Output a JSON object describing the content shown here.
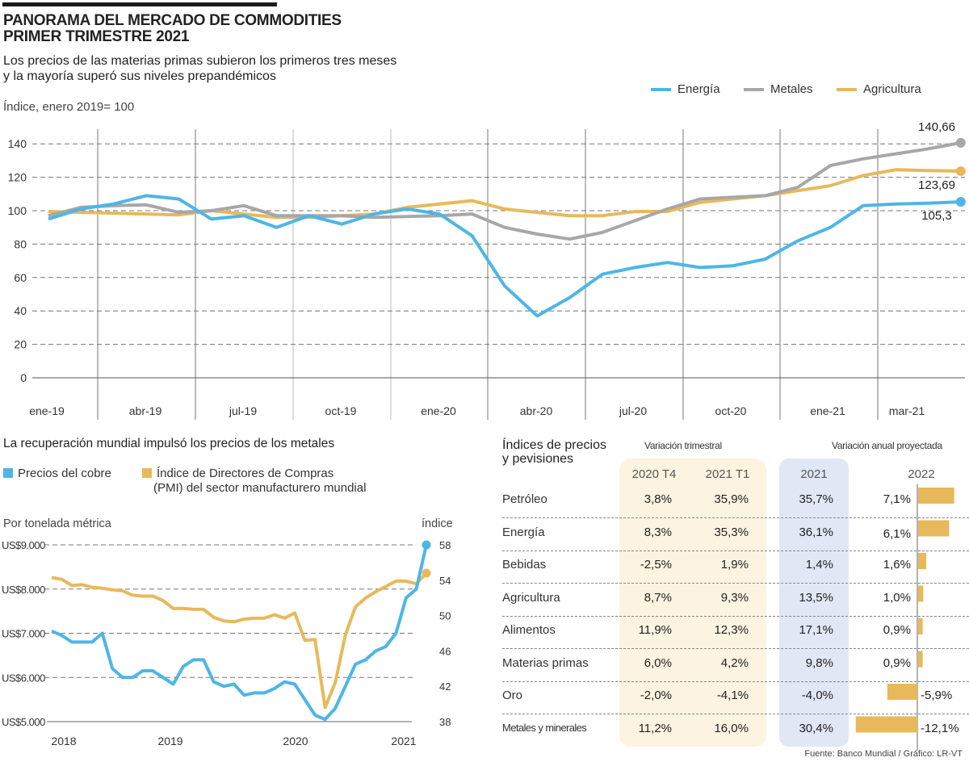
{
  "header": {
    "title_line1": "PANORAMA DEL MERCADO DE COMMODITIES",
    "title_line2": "PRIMER TRIMESTRE 2021",
    "subtitle_line1": "Los precios de las materias primas subieron los primeros tres meses",
    "subtitle_line2": "y la mayoría superó sus niveles prepandémicos",
    "unit_label": "Índice, enero 2019= 100"
  },
  "colors": {
    "energia": "#4db6e6",
    "metales": "#a7a7aa",
    "agricultura": "#e8b95a",
    "band_quarterly": "#fdf3e1",
    "band_annual": "#e1e7f4"
  },
  "chart_data": [
    {
      "type": "line",
      "title": "Índice, enero 2019= 100",
      "ylabel": "Índice, enero 2019= 100",
      "ylim": [
        0,
        140
      ],
      "yticks": [
        "0",
        "20",
        "40",
        "60",
        "80",
        "100",
        "120",
        "140"
      ],
      "ytick_values": [
        0,
        20,
        40,
        60,
        80,
        100,
        120,
        140
      ],
      "xtick_labels": [
        "ene-19",
        "abr-19",
        "jul-19",
        "oct-19",
        "ene-20",
        "abr-20",
        "jul-20",
        "oct-20",
        "ene-21",
        "mar-21"
      ],
      "x": [
        "ene-19",
        "feb-19",
        "mar-19",
        "abr-19",
        "may-19",
        "jun-19",
        "jul-19",
        "ago-19",
        "sep-19",
        "oct-19",
        "nov-19",
        "dic-19",
        "ene-20",
        "feb-20",
        "mar-20",
        "abr-20",
        "may-20",
        "jun-20",
        "jul-20",
        "ago-20",
        "sep-20",
        "oct-20",
        "nov-20",
        "dic-20",
        "ene-21",
        "feb-21",
        "mar-21",
        "abr-21",
        "may-21"
      ],
      "legend_position": "top-right",
      "grid": true,
      "series": [
        {
          "name": "Energía",
          "color_key": "energia",
          "values": [
            95,
            101,
            104,
            109,
            107,
            95,
            97,
            90,
            97,
            92,
            98,
            101,
            98,
            85,
            55,
            37,
            48,
            62,
            66,
            69,
            66,
            67,
            71,
            82,
            90,
            103,
            104,
            104.5,
            105.3
          ]
        },
        {
          "name": "Metales",
          "color_key": "metales",
          "values": [
            97,
            102,
            103,
            103.5,
            99,
            100,
            103,
            97,
            97,
            97,
            96,
            96.5,
            97,
            98,
            90,
            86,
            83,
            87,
            94,
            101,
            107,
            108,
            109,
            114,
            127,
            131,
            134,
            137,
            140.66
          ]
        },
        {
          "name": "Agricultura",
          "color_key": "agricultura",
          "values": [
            99.5,
            99,
            98.5,
            98,
            97.5,
            100,
            98,
            96,
            96,
            97,
            98,
            102,
            104,
            106,
            101,
            99,
            97,
            97,
            99.5,
            99.5,
            105,
            107,
            109,
            112,
            115,
            121,
            124.5,
            124,
            123.69
          ]
        }
      ],
      "annotations": [
        {
          "series": "Metales",
          "label": "140,66"
        },
        {
          "series": "Agricultura",
          "label": "123,69"
        },
        {
          "series": "Energía",
          "label": "105,3"
        }
      ]
    },
    {
      "type": "line",
      "title": "La recuperación mundial impulsó los precios de los metales",
      "ylabel": "Por tonelada métrica",
      "ylabel_right": "índice",
      "ylim": [
        5000,
        9000
      ],
      "ylim_right": [
        38,
        58
      ],
      "yticks": [
        "US$5.000",
        "US$6.000",
        "US$7.000",
        "US$8.000",
        "US$9.000"
      ],
      "ytick_values": [
        5000,
        6000,
        7000,
        8000,
        9000
      ],
      "yticks_right": [
        "38",
        "42",
        "46",
        "50",
        "54",
        "58"
      ],
      "ytick_values_right": [
        38,
        42,
        46,
        50,
        54,
        58
      ],
      "xtick_labels": [
        "2018",
        "2019",
        "2020",
        "2021"
      ],
      "x_range": [
        "ene-2018",
        "mar-2021"
      ],
      "legend_position": "top-left",
      "grid": true,
      "series": [
        {
          "name": "Precios del cobre",
          "axis": "left",
          "color_key": "energia",
          "values": [
            7050,
            6950,
            6800,
            6800,
            6800,
            7000,
            6200,
            6000,
            6000,
            6150,
            6150,
            6000,
            5850,
            6250,
            6400,
            6400,
            5900,
            5800,
            5850,
            5600,
            5650,
            5650,
            5750,
            5900,
            5850,
            5500,
            5150,
            5050,
            5300,
            5800,
            6300,
            6400,
            6600,
            6700,
            7000,
            7800,
            8000,
            9000
          ]
        },
        {
          "name": "Índice de Directores de Compras (PMI) del sector manufacturero mundial",
          "axis": "right",
          "color_key": "agricultura",
          "values": [
            54.3,
            54.1,
            53.4,
            53.5,
            53.2,
            53.1,
            52.9,
            52.8,
            52.3,
            52.2,
            52.2,
            51.7,
            50.8,
            50.8,
            50.7,
            50.7,
            49.8,
            49.4,
            49.3,
            49.6,
            49.7,
            49.7,
            50.1,
            49.7,
            50.3,
            47.2,
            47.3,
            39.6,
            42.4,
            47.8,
            51.0,
            52.0,
            52.7,
            53.3,
            53.9,
            53.9,
            53.6,
            54.8
          ]
        }
      ],
      "legend": [
        "Precios del cobre",
        "Índice de Directores de Compras (PMI) del sector manufacturero mundial"
      ]
    },
    {
      "type": "table",
      "title": "Índices de precios y pevisiones",
      "group_headers": [
        "Variación trimestral",
        "Variación anual  proyectada"
      ],
      "columns": [
        "2020 T4",
        "2021 T1",
        "2021",
        "2022"
      ],
      "rows": [
        {
          "label": "Petróleo",
          "t4_2020": "3,8%",
          "t1_2021": "35,9%",
          "y2021": "35,7%",
          "y2022": "7,1%",
          "y2022_value": 7.1
        },
        {
          "label": "Energía",
          "t4_2020": "8,3%",
          "t1_2021": "35,3%",
          "y2021": "36,1%",
          "y2022": "6,1%",
          "y2022_value": 6.1
        },
        {
          "label": "Bebidas",
          "t4_2020": "-2,5%",
          "t1_2021": "1,9%",
          "y2021": "1,4%",
          "y2022": "1,6%",
          "y2022_value": 1.6
        },
        {
          "label": "Agricultura",
          "t4_2020": "8,7%",
          "t1_2021": "9,3%",
          "y2021": "13,5%",
          "y2022": "1,0%",
          "y2022_value": 1.0
        },
        {
          "label": "Alimentos",
          "t4_2020": "11,9%",
          "t1_2021": "12,3%",
          "y2021": "17,1%",
          "y2022": "0,9%",
          "y2022_value": 0.9
        },
        {
          "label": "Materias primas",
          "t4_2020": "6,0%",
          "t1_2021": "4,2%",
          "y2021": "9,8%",
          "y2022": "0,9%",
          "y2022_value": 0.9
        },
        {
          "label": "Oro",
          "t4_2020": "-2,0%",
          "t1_2021": "-4,1%",
          "y2021": "-4,0%",
          "y2022": "-5,9%",
          "y2022_value": -5.9
        },
        {
          "label": "Metales y minerales",
          "t4_2020": "11,2%",
          "t1_2021": "16,0%",
          "y2021": "30,4%",
          "y2022": "-12,1%",
          "y2022_value": -12.1
        }
      ]
    }
  ],
  "legend_main": [
    "Energía",
    "Metales",
    "Agricultura"
  ],
  "copper_section": {
    "title": "La recuperación mundial impulsó los precios de los metales",
    "legend_copper": "Precios del cobre",
    "legend_pmi_line1": "Índice de Directores de Compras",
    "legend_pmi_line2": "(PMI) del sector manufacturero mundial",
    "left_axis_title": "Por tonelada métrica",
    "right_axis_title": "índice"
  },
  "table_section": {
    "title_line1": "Índices de precios",
    "title_line2": "y pevisiones",
    "group_quarterly": "Variación trimestral",
    "group_annual": "Variación anual  proyectada"
  },
  "source": "Fuente: Banco Mundial / Gráfico: LR-VT"
}
